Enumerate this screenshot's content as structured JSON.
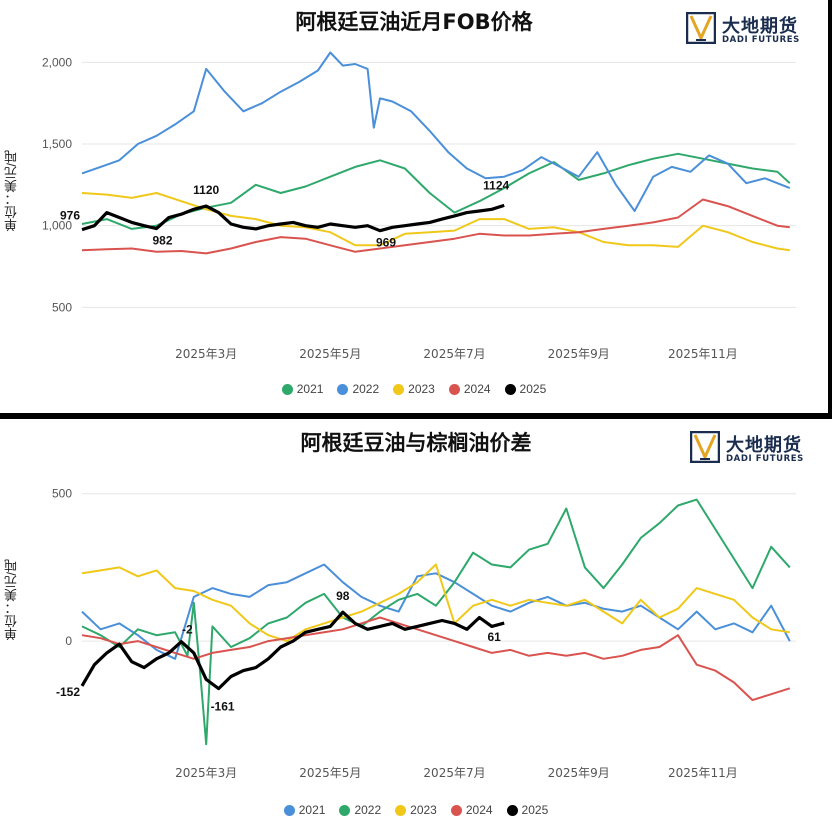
{
  "logo": {
    "cn": "大地期货",
    "en": "DADI FUTURES"
  },
  "legend_colors": {
    "2021": "#2ea86b",
    "2022": "#4a8fd9",
    "2023": "#efc81a",
    "2024": "#d9534f",
    "2025": "#000000"
  },
  "chart_data": [
    {
      "type": "line",
      "title": "阿根廷豆油近月FOB价格",
      "ylabel": "单位：美元/吨",
      "xlabel": "",
      "x_ticks": [
        "2025年3月",
        "2025年5月",
        "2025年7月",
        "2025年9月",
        "2025年11月"
      ],
      "y_ticks": [
        "500",
        "1,000",
        "1,500",
        "2,000"
      ],
      "ylim": [
        300,
        2100
      ],
      "x_range_months": [
        1,
        12.5
      ],
      "grid": true,
      "legend_position": "bottom",
      "series": [
        {
          "name": "2021",
          "x": [
            1.0,
            1.4,
            1.8,
            2.2,
            2.6,
            3.0,
            3.4,
            3.8,
            4.2,
            4.6,
            5.0,
            5.4,
            5.8,
            6.2,
            6.6,
            7.0,
            7.4,
            7.8,
            8.2,
            8.6,
            9.0,
            9.4,
            9.8,
            10.2,
            10.6,
            11.0,
            11.4,
            11.8,
            12.2,
            12.4
          ],
          "y": [
            1010,
            1040,
            980,
            1000,
            1070,
            1110,
            1140,
            1250,
            1200,
            1240,
            1300,
            1360,
            1400,
            1350,
            1200,
            1080,
            1150,
            1230,
            1320,
            1390,
            1280,
            1320,
            1370,
            1410,
            1440,
            1410,
            1380,
            1350,
            1330,
            1260
          ]
        },
        {
          "name": "2022",
          "x": [
            1.0,
            1.3,
            1.6,
            1.9,
            2.2,
            2.5,
            2.8,
            3.0,
            3.3,
            3.6,
            3.9,
            4.2,
            4.5,
            4.8,
            5.0,
            5.2,
            5.4,
            5.6,
            5.7,
            5.8,
            6.0,
            6.3,
            6.6,
            6.9,
            7.2,
            7.5,
            7.8,
            8.1,
            8.4,
            8.7,
            9.0,
            9.3,
            9.6,
            9.9,
            10.2,
            10.5,
            10.8,
            11.1,
            11.4,
            11.7,
            12.0,
            12.4
          ],
          "y": [
            1320,
            1360,
            1400,
            1500,
            1550,
            1620,
            1700,
            1960,
            1820,
            1700,
            1750,
            1820,
            1880,
            1950,
            2060,
            1980,
            1990,
            1960,
            1600,
            1780,
            1760,
            1700,
            1580,
            1450,
            1350,
            1290,
            1300,
            1340,
            1420,
            1360,
            1300,
            1450,
            1250,
            1090,
            1300,
            1360,
            1330,
            1430,
            1380,
            1260,
            1290,
            1230
          ]
        },
        {
          "name": "2023",
          "x": [
            1.0,
            1.4,
            1.8,
            2.2,
            2.6,
            3.0,
            3.4,
            3.8,
            4.2,
            4.6,
            5.0,
            5.4,
            5.8,
            6.2,
            6.6,
            7.0,
            7.4,
            7.8,
            8.2,
            8.6,
            9.0,
            9.4,
            9.8,
            10.2,
            10.6,
            11.0,
            11.4,
            11.8,
            12.2,
            12.4
          ],
          "y": [
            1200,
            1190,
            1170,
            1200,
            1150,
            1100,
            1060,
            1040,
            1000,
            990,
            960,
            880,
            880,
            950,
            960,
            970,
            1040,
            1040,
            980,
            990,
            960,
            900,
            880,
            880,
            870,
            1000,
            960,
            900,
            860,
            850
          ]
        },
        {
          "name": "2024",
          "x": [
            1.0,
            1.4,
            1.8,
            2.2,
            2.6,
            3.0,
            3.4,
            3.8,
            4.2,
            4.6,
            5.0,
            5.4,
            5.8,
            6.2,
            6.6,
            7.0,
            7.4,
            7.8,
            8.2,
            8.6,
            9.0,
            9.4,
            9.8,
            10.2,
            10.6,
            11.0,
            11.4,
            11.8,
            12.2,
            12.4
          ],
          "y": [
            850,
            855,
            860,
            840,
            845,
            830,
            860,
            900,
            930,
            920,
            880,
            840,
            860,
            880,
            900,
            920,
            950,
            940,
            940,
            950,
            960,
            980,
            1000,
            1020,
            1050,
            1160,
            1120,
            1060,
            1000,
            990
          ]
        },
        {
          "name": "2025",
          "x": [
            1.0,
            1.2,
            1.4,
            1.6,
            1.8,
            2.0,
            2.2,
            2.4,
            2.6,
            2.8,
            3.0,
            3.2,
            3.4,
            3.6,
            3.8,
            4.0,
            4.2,
            4.4,
            4.6,
            4.8,
            5.0,
            5.2,
            5.4,
            5.6,
            5.8,
            6.0,
            6.2,
            6.4,
            6.6,
            6.8,
            7.0,
            7.2,
            7.4,
            7.6,
            7.8
          ],
          "y": [
            976,
            1000,
            1080,
            1050,
            1020,
            1000,
            982,
            1050,
            1070,
            1100,
            1120,
            1080,
            1010,
            990,
            980,
            1000,
            1010,
            1020,
            1000,
            990,
            1010,
            1000,
            990,
            1000,
            969,
            990,
            1000,
            1010,
            1020,
            1040,
            1060,
            1080,
            1090,
            1100,
            1124
          ]
        }
      ],
      "annotations": [
        {
          "text": "976",
          "x": 1.0,
          "y": 976
        },
        {
          "text": "1120",
          "x": 3.0,
          "y": 1120
        },
        {
          "text": "982",
          "x": 2.2,
          "y": 982
        },
        {
          "text": "969",
          "x": 5.8,
          "y": 969
        },
        {
          "text": "1124",
          "x": 7.8,
          "y": 1124
        }
      ]
    },
    {
      "type": "line",
      "title": "阿根廷豆油与棕榈油价差",
      "ylabel": "单位：美元/吨",
      "xlabel": "",
      "x_ticks": [
        "2025年3月",
        "2025年5月",
        "2025年7月",
        "2025年9月",
        "2025年11月"
      ],
      "y_ticks": [
        "0",
        "500"
      ],
      "ylim": [
        -400,
        550
      ],
      "x_range_months": [
        1,
        12.5
      ],
      "grid": true,
      "legend_position": "bottom",
      "series": [
        {
          "name": "2021",
          "x": [
            1.0,
            1.3,
            1.6,
            1.9,
            2.2,
            2.5,
            2.8,
            3.1,
            3.4,
            3.7,
            4.0,
            4.3,
            4.6,
            4.9,
            5.2,
            5.5,
            5.8,
            6.1,
            6.4,
            6.7,
            7.0,
            7.3,
            7.6,
            7.9,
            8.2,
            8.5,
            8.8,
            9.1,
            9.4,
            9.7,
            10.0,
            10.3,
            10.6,
            10.9,
            11.2,
            11.5,
            11.8,
            12.1,
            12.4
          ],
          "y": [
            100,
            40,
            60,
            20,
            -30,
            -60,
            150,
            180,
            160,
            150,
            190,
            200,
            230,
            260,
            200,
            150,
            120,
            100,
            220,
            230,
            200,
            160,
            120,
            100,
            130,
            150,
            120,
            130,
            110,
            100,
            120,
            80,
            40,
            100,
            40,
            60,
            30,
            120,
            0
          ]
        },
        {
          "name": "2022",
          "x": [
            1.0,
            1.3,
            1.6,
            1.9,
            2.2,
            2.5,
            2.7,
            2.8,
            2.9,
            3.0,
            3.1,
            3.4,
            3.7,
            4.0,
            4.3,
            4.6,
            4.9,
            5.2,
            5.5,
            5.8,
            6.1,
            6.4,
            6.7,
            7.0,
            7.3,
            7.6,
            7.9,
            8.2,
            8.5,
            8.8,
            9.1,
            9.4,
            9.7,
            10.0,
            10.3,
            10.6,
            10.9,
            11.2,
            11.5,
            11.8,
            12.1,
            12.4
          ],
          "y": [
            50,
            20,
            -20,
            40,
            20,
            30,
            -50,
            130,
            -100,
            -350,
            50,
            -20,
            10,
            60,
            80,
            130,
            160,
            80,
            50,
            100,
            140,
            160,
            120,
            200,
            300,
            260,
            250,
            310,
            330,
            450,
            250,
            180,
            260,
            350,
            400,
            460,
            480,
            380,
            280,
            180,
            320,
            250
          ]
        },
        {
          "name": "2023",
          "x": [
            1.0,
            1.3,
            1.6,
            1.9,
            2.2,
            2.5,
            2.8,
            3.1,
            3.4,
            3.7,
            4.0,
            4.3,
            4.6,
            4.9,
            5.2,
            5.5,
            5.8,
            6.1,
            6.4,
            6.7,
            7.0,
            7.3,
            7.6,
            7.9,
            8.2,
            8.5,
            8.8,
            9.1,
            9.4,
            9.7,
            10.0,
            10.3,
            10.6,
            10.9,
            11.2,
            11.5,
            11.8,
            12.1,
            12.4
          ],
          "y": [
            230,
            240,
            250,
            220,
            240,
            180,
            170,
            140,
            120,
            60,
            20,
            0,
            40,
            60,
            80,
            100,
            130,
            160,
            200,
            260,
            60,
            120,
            140,
            120,
            140,
            130,
            120,
            140,
            100,
            60,
            140,
            80,
            110,
            180,
            160,
            140,
            80,
            40,
            30
          ]
        },
        {
          "name": "2024",
          "x": [
            1.0,
            1.3,
            1.6,
            1.9,
            2.2,
            2.5,
            2.8,
            3.1,
            3.4,
            3.7,
            4.0,
            4.3,
            4.6,
            4.9,
            5.2,
            5.5,
            5.8,
            6.1,
            6.4,
            6.7,
            7.0,
            7.3,
            7.6,
            7.9,
            8.2,
            8.5,
            8.8,
            9.1,
            9.4,
            9.7,
            10.0,
            10.3,
            10.6,
            10.9,
            11.2,
            11.5,
            11.8,
            12.1,
            12.4
          ],
          "y": [
            20,
            10,
            -10,
            0,
            -20,
            -40,
            -60,
            -40,
            -30,
            -20,
            0,
            10,
            20,
            30,
            40,
            60,
            80,
            60,
            40,
            20,
            0,
            -20,
            -40,
            -30,
            -50,
            -40,
            -50,
            -40,
            -60,
            -50,
            -30,
            -20,
            20,
            -80,
            -100,
            -140,
            -200,
            -180,
            -160
          ]
        },
        {
          "name": "2025",
          "x": [
            1.0,
            1.2,
            1.4,
            1.6,
            1.8,
            2.0,
            2.2,
            2.4,
            2.6,
            2.8,
            3.0,
            3.2,
            3.4,
            3.6,
            3.8,
            4.0,
            4.2,
            4.4,
            4.6,
            4.8,
            5.0,
            5.2,
            5.4,
            5.6,
            5.8,
            6.0,
            6.2,
            6.4,
            6.6,
            6.8,
            7.0,
            7.2,
            7.4,
            7.6,
            7.8
          ],
          "y": [
            -152,
            -80,
            -40,
            -10,
            -70,
            -90,
            -60,
            -40,
            -2,
            -40,
            -130,
            -161,
            -120,
            -100,
            -90,
            -60,
            -20,
            0,
            30,
            40,
            50,
            98,
            60,
            40,
            50,
            60,
            40,
            50,
            60,
            70,
            60,
            40,
            80,
            50,
            61
          ]
        }
      ],
      "annotations": [
        {
          "text": "-152",
          "x": 1.0,
          "y": -152
        },
        {
          "text": "-2",
          "x": 2.6,
          "y": -2
        },
        {
          "text": "-161",
          "x": 3.2,
          "y": -161
        },
        {
          "text": "98",
          "x": 5.2,
          "y": 98
        },
        {
          "text": "61",
          "x": 7.8,
          "y": 61
        }
      ]
    }
  ]
}
